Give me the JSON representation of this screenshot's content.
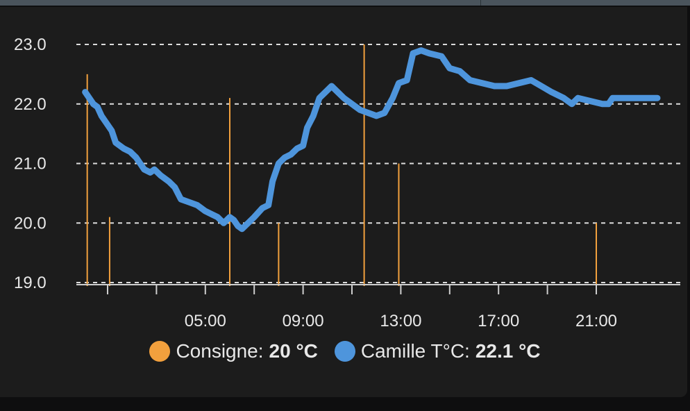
{
  "chart_data": {
    "type": "line",
    "y_ticks": [
      "23.0",
      "22.0",
      "21.0",
      "20.0",
      "19.0"
    ],
    "x_ticks": [
      "05:00",
      "09:00",
      "13:00",
      "17:00",
      "21:00"
    ],
    "ylim": [
      19.0,
      23.0
    ],
    "grid": true,
    "legend_placement": "bottom",
    "series": [
      {
        "name": "Consigne",
        "color": "#f2a03d",
        "type": "stem",
        "current_value": "20 °C",
        "points": [
          {
            "x": "0:10",
            "y": 22.5
          },
          {
            "x": "1:05",
            "y": 20.1
          },
          {
            "x": "6:00",
            "y": 22.1
          },
          {
            "x": "8:00",
            "y": 20.0
          },
          {
            "x": "11:30",
            "y": 23.0
          },
          {
            "x": "12:55",
            "y": 21.0
          },
          {
            "x": "21:00",
            "y": 20.0
          }
        ]
      },
      {
        "name": "Camille T°C",
        "color": "#4e95dc",
        "type": "line",
        "current_value": "22.1 °C",
        "points": [
          {
            "x": "0:05",
            "y": 22.2
          },
          {
            "x": "0:15",
            "y": 22.1
          },
          {
            "x": "0:25",
            "y": 22.0
          },
          {
            "x": "0:35",
            "y": 21.95
          },
          {
            "x": "0:45",
            "y": 21.8
          },
          {
            "x": "0:55",
            "y": 21.7
          },
          {
            "x": "1:10",
            "y": 21.55
          },
          {
            "x": "1:20",
            "y": 21.35
          },
          {
            "x": "1:40",
            "y": 21.25
          },
          {
            "x": "1:55",
            "y": 21.2
          },
          {
            "x": "2:10",
            "y": 21.1
          },
          {
            "x": "2:30",
            "y": 20.9
          },
          {
            "x": "2:45",
            "y": 20.85
          },
          {
            "x": "2:55",
            "y": 20.9
          },
          {
            "x": "3:10",
            "y": 20.8
          },
          {
            "x": "3:30",
            "y": 20.7
          },
          {
            "x": "3:45",
            "y": 20.6
          },
          {
            "x": "4:00",
            "y": 20.4
          },
          {
            "x": "4:20",
            "y": 20.35
          },
          {
            "x": "4:40",
            "y": 20.3
          },
          {
            "x": "5:00",
            "y": 20.2
          },
          {
            "x": "5:15",
            "y": 20.15
          },
          {
            "x": "5:30",
            "y": 20.1
          },
          {
            "x": "5:45",
            "y": 20.0
          },
          {
            "x": "6:00",
            "y": 20.1
          },
          {
            "x": "6:10",
            "y": 20.05
          },
          {
            "x": "6:20",
            "y": 19.95
          },
          {
            "x": "6:30",
            "y": 19.9
          },
          {
            "x": "6:45",
            "y": 20.0
          },
          {
            "x": "7:00",
            "y": 20.1
          },
          {
            "x": "7:20",
            "y": 20.25
          },
          {
            "x": "7:35",
            "y": 20.3
          },
          {
            "x": "7:45",
            "y": 20.7
          },
          {
            "x": "8:00",
            "y": 21.0
          },
          {
            "x": "8:15",
            "y": 21.1
          },
          {
            "x": "8:30",
            "y": 21.15
          },
          {
            "x": "8:45",
            "y": 21.25
          },
          {
            "x": "9:00",
            "y": 21.3
          },
          {
            "x": "9:10",
            "y": 21.6
          },
          {
            "x": "9:25",
            "y": 21.8
          },
          {
            "x": "9:40",
            "y": 22.1
          },
          {
            "x": "9:55",
            "y": 22.2
          },
          {
            "x": "10:10",
            "y": 22.3
          },
          {
            "x": "10:25",
            "y": 22.2
          },
          {
            "x": "10:40",
            "y": 22.1
          },
          {
            "x": "11:00",
            "y": 22.0
          },
          {
            "x": "11:20",
            "y": 21.9
          },
          {
            "x": "11:40",
            "y": 21.85
          },
          {
            "x": "12:00",
            "y": 21.8
          },
          {
            "x": "12:20",
            "y": 21.85
          },
          {
            "x": "12:40",
            "y": 22.1
          },
          {
            "x": "12:55",
            "y": 22.35
          },
          {
            "x": "13:15",
            "y": 22.4
          },
          {
            "x": "13:30",
            "y": 22.85
          },
          {
            "x": "13:50",
            "y": 22.9
          },
          {
            "x": "14:10",
            "y": 22.85
          },
          {
            "x": "14:40",
            "y": 22.8
          },
          {
            "x": "15:00",
            "y": 22.6
          },
          {
            "x": "15:25",
            "y": 22.55
          },
          {
            "x": "15:50",
            "y": 22.4
          },
          {
            "x": "16:20",
            "y": 22.35
          },
          {
            "x": "16:50",
            "y": 22.3
          },
          {
            "x": "17:20",
            "y": 22.3
          },
          {
            "x": "17:50",
            "y": 22.35
          },
          {
            "x": "18:20",
            "y": 22.4
          },
          {
            "x": "18:45",
            "y": 22.3
          },
          {
            "x": "19:10",
            "y": 22.2
          },
          {
            "x": "19:40",
            "y": 22.1
          },
          {
            "x": "20:00",
            "y": 22.0
          },
          {
            "x": "20:15",
            "y": 22.1
          },
          {
            "x": "20:45",
            "y": 22.05
          },
          {
            "x": "21:15",
            "y": 22.0
          },
          {
            "x": "21:30",
            "y": 22.0
          },
          {
            "x": "21:40",
            "y": 22.1
          },
          {
            "x": "22:30",
            "y": 22.1
          },
          {
            "x": "23:30",
            "y": 22.1
          }
        ]
      }
    ]
  }
}
